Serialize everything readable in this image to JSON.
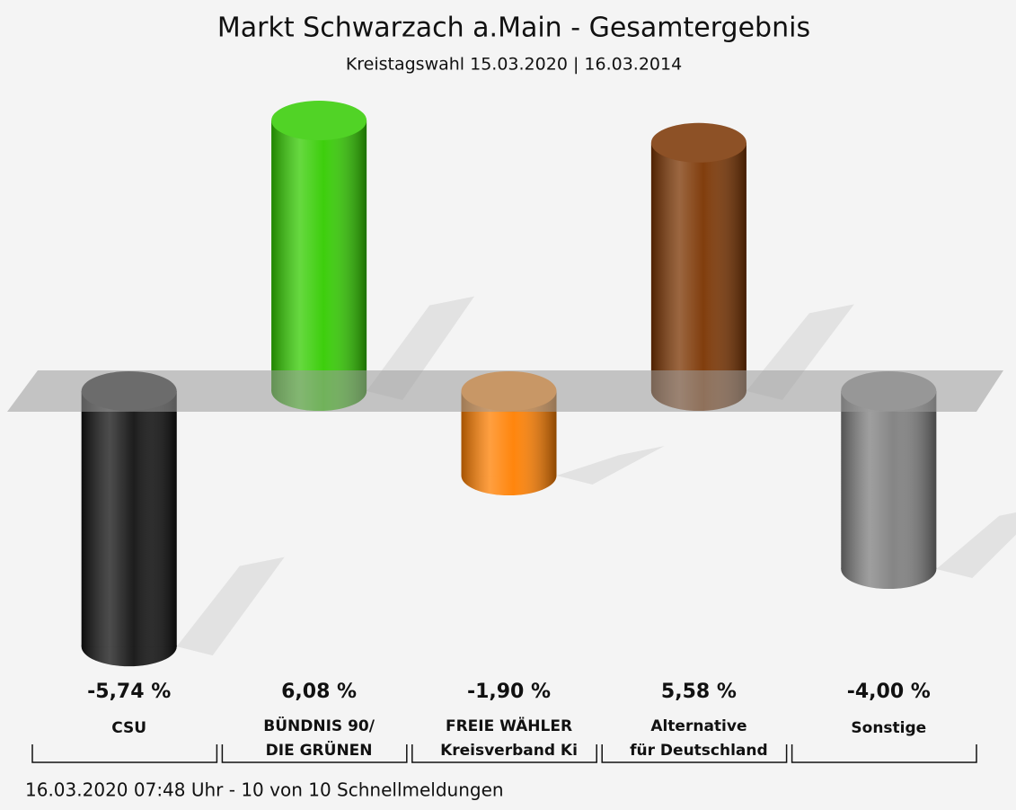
{
  "chart_data": {
    "type": "bar",
    "title": "Markt Schwarzach a.Main - Gesamtergebnis",
    "subtitle": "Kreistagswahl 15.03.2020  | 16.03.2014",
    "categories": [
      [
        "CSU"
      ],
      [
        "BÜNDNIS 90/",
        "DIE GRÜNEN"
      ],
      [
        "FREIE WÄHLER",
        "Kreisverband Ki"
      ],
      [
        "Alternative",
        "für Deutschland"
      ],
      [
        "Sonstige"
      ]
    ],
    "values": [
      -5.74,
      6.08,
      -1.9,
      5.58,
      -4.0
    ],
    "value_labels": [
      "-5,74 %",
      "6,08 %",
      "-1,90 %",
      "5,58 %",
      "-4,00 %"
    ],
    "colors": [
      "#111111",
      "#33cc00",
      "#ff7f00",
      "#7a3300",
      "#7f7f7f"
    ],
    "ylim": [
      -6.5,
      7
    ],
    "footer": "16.03.2020 07:48 Uhr - 10 von 10 Schnellmeldungen"
  }
}
